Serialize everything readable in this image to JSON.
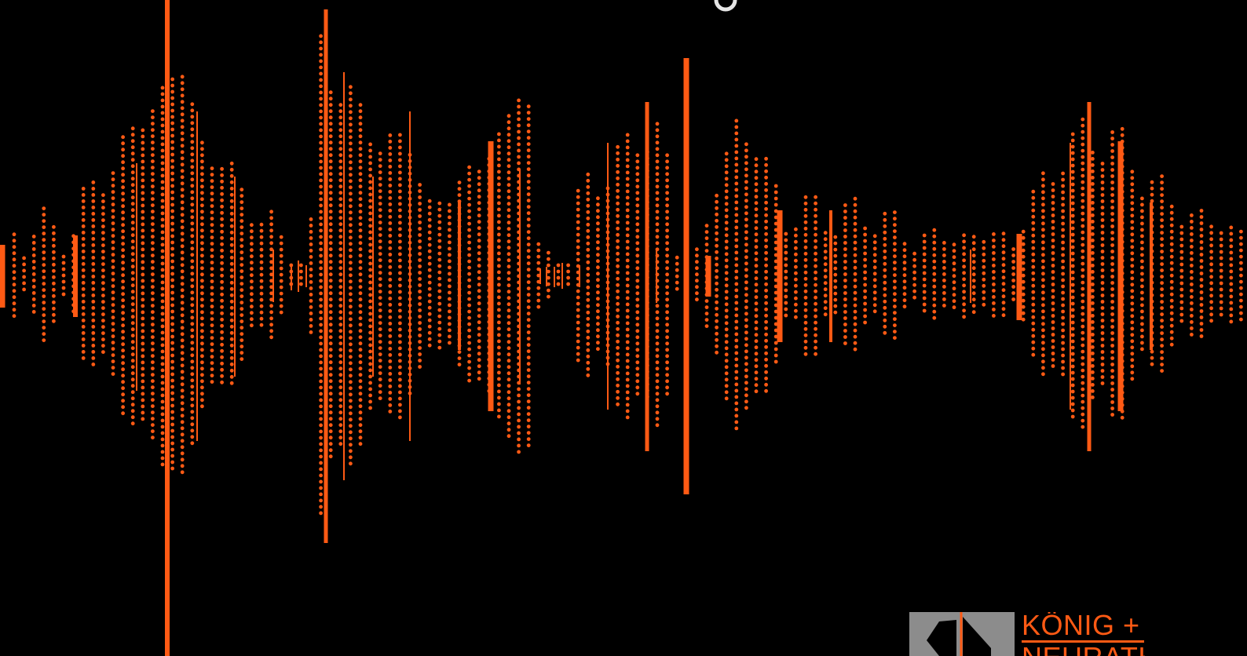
{
  "brand": {
    "line1": "KÖNIG +",
    "line2": "NEURATH",
    "accent_color": "#ff5a14",
    "mark_color": "#8c8c8c",
    "logo_icon": "koenig-neurath-logo-mark"
  },
  "background_color": "#000000",
  "waveform": {
    "style": "dotted-audio-waveform",
    "color": "#ff5a14"
  }
}
